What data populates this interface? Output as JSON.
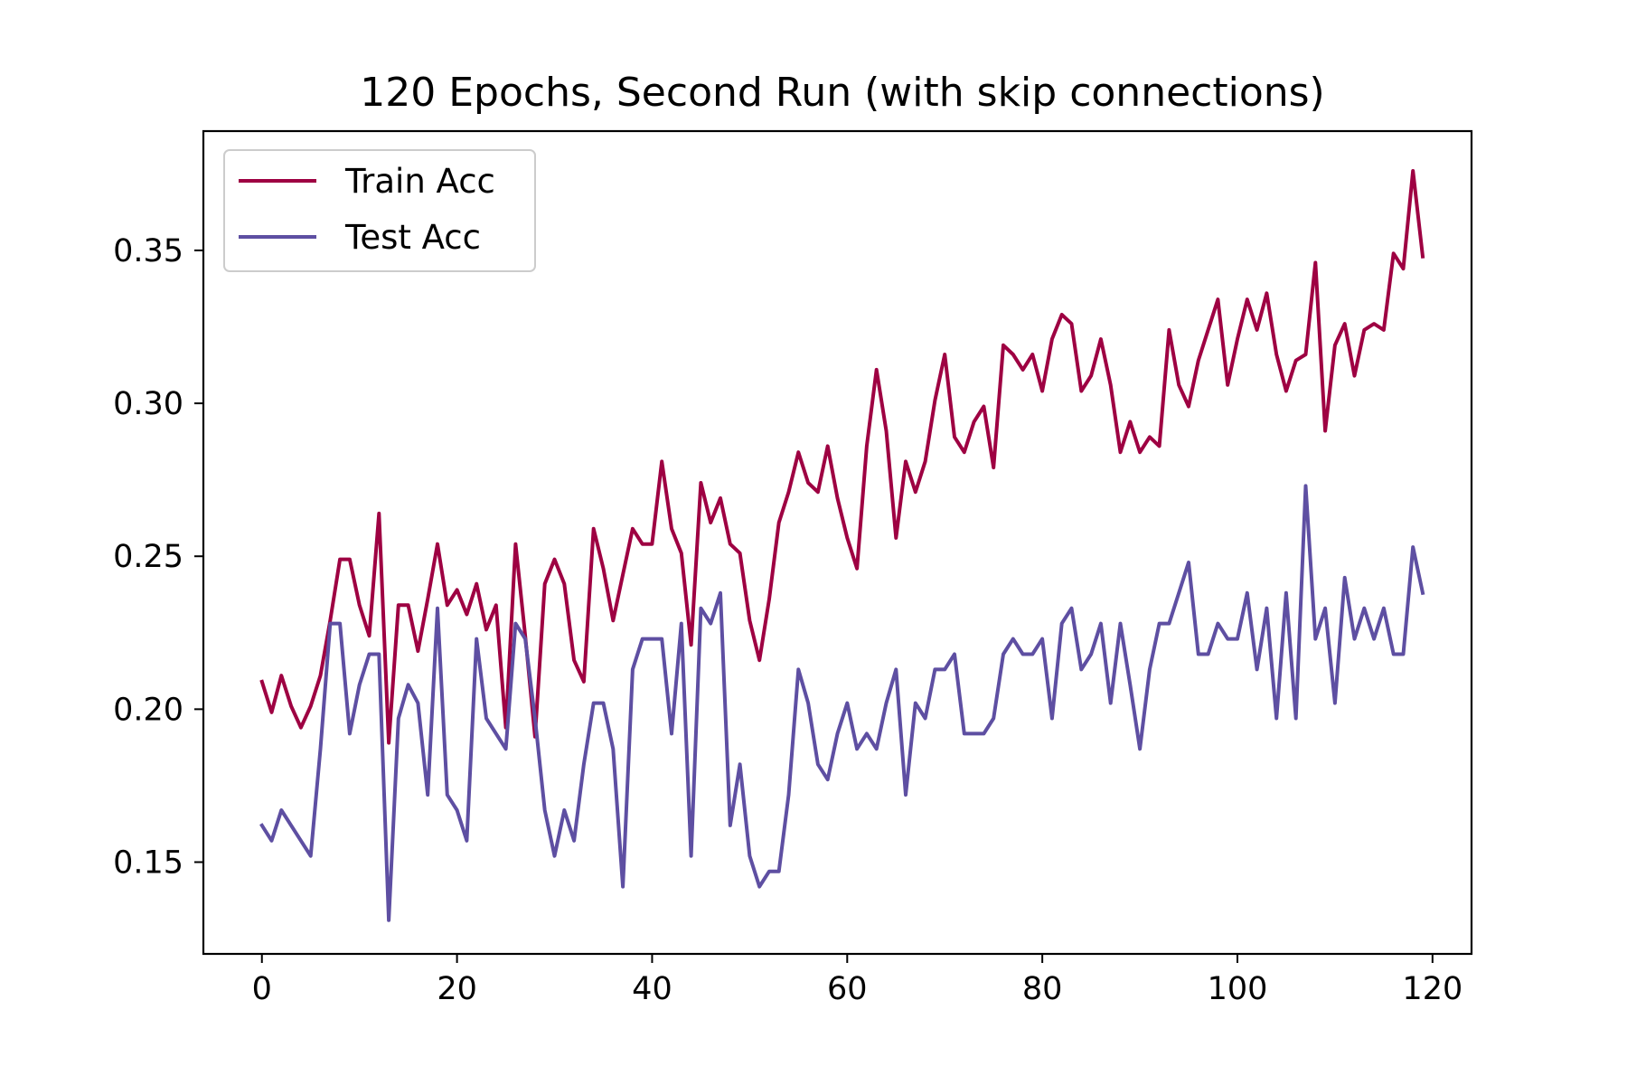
{
  "chart_data": {
    "type": "line",
    "title": "120 Epochs, Second Run (with skip connections)",
    "xlabel": "",
    "ylabel": "",
    "xlim": [
      -6,
      124
    ],
    "ylim": [
      0.12,
      0.389
    ],
    "xticks": [
      0,
      20,
      40,
      60,
      80,
      100,
      120
    ],
    "xtick_labels": [
      "0",
      "20",
      "40",
      "60",
      "80",
      "100",
      "120"
    ],
    "yticks": [
      0.15,
      0.2,
      0.25,
      0.3,
      0.35
    ],
    "ytick_labels": [
      "0.15",
      "0.20",
      "0.25",
      "0.30",
      "0.35"
    ],
    "grid": false,
    "legend_position": "top-left",
    "x": [
      0,
      1,
      2,
      3,
      4,
      5,
      6,
      7,
      8,
      9,
      10,
      11,
      12,
      13,
      14,
      15,
      16,
      17,
      18,
      19,
      20,
      21,
      22,
      23,
      24,
      25,
      26,
      27,
      28,
      29,
      30,
      31,
      32,
      33,
      34,
      35,
      36,
      37,
      38,
      39,
      40,
      41,
      42,
      43,
      44,
      45,
      46,
      47,
      48,
      49,
      50,
      51,
      52,
      53,
      54,
      55,
      56,
      57,
      58,
      59,
      60,
      61,
      62,
      63,
      64,
      65,
      66,
      67,
      68,
      69,
      70,
      71,
      72,
      73,
      74,
      75,
      76,
      77,
      78,
      79,
      80,
      81,
      82,
      83,
      84,
      85,
      86,
      87,
      88,
      89,
      90,
      91,
      92,
      93,
      94,
      95,
      96,
      97,
      98,
      99,
      100,
      101,
      102,
      103,
      104,
      105,
      106,
      107,
      108,
      109,
      110,
      111,
      112,
      113,
      114,
      115,
      116,
      117,
      118,
      119
    ],
    "series": [
      {
        "name": "Train Acc",
        "color": "#9e0142",
        "values": [
          0.209,
          0.199,
          0.211,
          0.201,
          0.194,
          0.201,
          0.211,
          0.229,
          0.249,
          0.249,
          0.234,
          0.224,
          0.264,
          0.189,
          0.234,
          0.234,
          0.219,
          0.236,
          0.254,
          0.234,
          0.239,
          0.231,
          0.241,
          0.226,
          0.234,
          0.194,
          0.254,
          0.224,
          0.191,
          0.241,
          0.249,
          0.241,
          0.216,
          0.209,
          0.259,
          0.246,
          0.229,
          0.244,
          0.259,
          0.254,
          0.254,
          0.281,
          0.259,
          0.251,
          0.221,
          0.274,
          0.261,
          0.269,
          0.254,
          0.251,
          0.229,
          0.216,
          0.236,
          0.261,
          0.271,
          0.284,
          0.274,
          0.271,
          0.286,
          0.269,
          0.256,
          0.246,
          0.286,
          0.311,
          0.291,
          0.256,
          0.281,
          0.271,
          0.281,
          0.301,
          0.316,
          0.289,
          0.284,
          0.294,
          0.299,
          0.279,
          0.319,
          0.316,
          0.311,
          0.316,
          0.304,
          0.321,
          0.329,
          0.326,
          0.304,
          0.309,
          0.321,
          0.306,
          0.284,
          0.294,
          0.284,
          0.289,
          0.286,
          0.324,
          0.306,
          0.299,
          0.314,
          0.324,
          0.334,
          0.306,
          0.321,
          0.334,
          0.324,
          0.336,
          0.316,
          0.304,
          0.314,
          0.316,
          0.346,
          0.291,
          0.319,
          0.326,
          0.309,
          0.324,
          0.326,
          0.324,
          0.349,
          0.344,
          0.376,
          0.348
        ]
      },
      {
        "name": "Test Acc",
        "color": "#5e4fa2",
        "values": [
          0.162,
          0.157,
          0.167,
          0.162,
          0.157,
          0.152,
          0.187,
          0.228,
          0.228,
          0.192,
          0.208,
          0.218,
          0.218,
          0.131,
          0.197,
          0.208,
          0.202,
          0.172,
          0.233,
          0.172,
          0.167,
          0.157,
          0.223,
          0.197,
          0.192,
          0.187,
          0.228,
          0.223,
          0.197,
          0.167,
          0.152,
          0.167,
          0.157,
          0.182,
          0.202,
          0.202,
          0.187,
          0.142,
          0.213,
          0.223,
          0.223,
          0.223,
          0.192,
          0.228,
          0.152,
          0.233,
          0.228,
          0.238,
          0.162,
          0.182,
          0.152,
          0.142,
          0.147,
          0.147,
          0.172,
          0.213,
          0.202,
          0.182,
          0.177,
          0.192,
          0.202,
          0.187,
          0.192,
          0.187,
          0.202,
          0.213,
          0.172,
          0.202,
          0.197,
          0.213,
          0.213,
          0.218,
          0.192,
          0.192,
          0.192,
          0.197,
          0.218,
          0.223,
          0.218,
          0.218,
          0.223,
          0.197,
          0.228,
          0.233,
          0.213,
          0.218,
          0.228,
          0.202,
          0.228,
          0.208,
          0.187,
          0.213,
          0.228,
          0.228,
          0.238,
          0.248,
          0.218,
          0.218,
          0.228,
          0.223,
          0.223,
          0.238,
          0.213,
          0.233,
          0.197,
          0.238,
          0.197,
          0.273,
          0.223,
          0.233,
          0.202,
          0.243,
          0.223,
          0.233,
          0.223,
          0.233,
          0.218,
          0.218,
          0.253,
          0.238
        ]
      }
    ]
  }
}
